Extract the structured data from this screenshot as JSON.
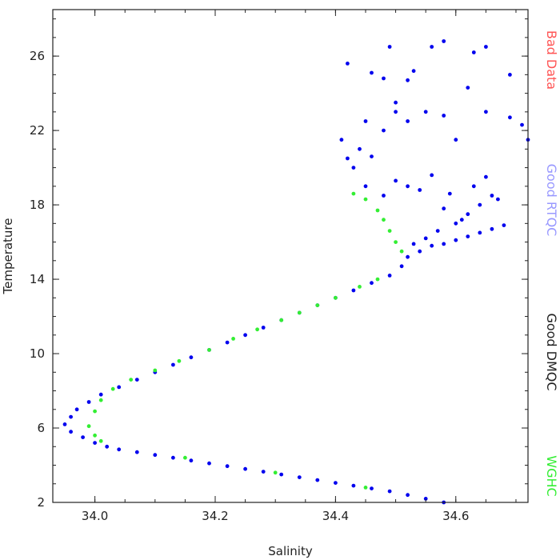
{
  "chart_data": {
    "type": "scatter",
    "title": "",
    "xlabel": "Salinity",
    "ylabel": "Temperature",
    "xlim": [
      33.93,
      34.72
    ],
    "ylim": [
      2,
      28.5
    ],
    "xticks": [
      34.0,
      34.2,
      34.4,
      34.6
    ],
    "xtick_labels": [
      "34.0",
      "34.2",
      "34.4",
      "34.6"
    ],
    "yticks": [
      2,
      6,
      10,
      14,
      18,
      22,
      26
    ],
    "ytick_labels": [
      "2",
      "6",
      "10",
      "14",
      "18",
      "22",
      "26"
    ],
    "grid": false,
    "legend_placement": "right",
    "legend": [
      {
        "label": "Bad Data",
        "color": "#ff5555"
      },
      {
        "label": "Good RTQC",
        "color": "#9999ff"
      },
      {
        "label": "Good DMQC",
        "color": "#222222"
      },
      {
        "label": "WGHC",
        "color": "#33ee33"
      }
    ],
    "series": [
      {
        "color": "#0000ee",
        "points": [
          [
            34.58,
            2.0
          ],
          [
            34.55,
            2.2
          ],
          [
            34.52,
            2.4
          ],
          [
            34.49,
            2.6
          ],
          [
            34.46,
            2.75
          ],
          [
            34.43,
            2.9
          ],
          [
            34.4,
            3.05
          ],
          [
            34.37,
            3.2
          ],
          [
            34.34,
            3.35
          ],
          [
            34.31,
            3.5
          ],
          [
            34.28,
            3.65
          ],
          [
            34.25,
            3.8
          ],
          [
            34.22,
            3.95
          ],
          [
            34.19,
            4.1
          ],
          [
            34.16,
            4.25
          ],
          [
            34.13,
            4.4
          ],
          [
            34.1,
            4.55
          ],
          [
            34.07,
            4.7
          ],
          [
            34.04,
            4.85
          ],
          [
            34.02,
            5.0
          ],
          [
            34.0,
            5.2
          ],
          [
            33.98,
            5.5
          ],
          [
            33.96,
            5.8
          ],
          [
            33.95,
            6.2
          ],
          [
            33.96,
            6.6
          ],
          [
            33.97,
            7.0
          ],
          [
            33.99,
            7.4
          ],
          [
            34.01,
            7.8
          ],
          [
            34.04,
            8.2
          ],
          [
            34.07,
            8.6
          ],
          [
            34.1,
            9.0
          ],
          [
            34.13,
            9.4
          ],
          [
            34.16,
            9.8
          ],
          [
            34.19,
            10.2
          ],
          [
            34.22,
            10.6
          ],
          [
            34.25,
            11.0
          ],
          [
            34.28,
            11.4
          ],
          [
            34.31,
            11.8
          ],
          [
            34.34,
            12.2
          ],
          [
            34.37,
            12.6
          ],
          [
            34.4,
            13.0
          ],
          [
            34.43,
            13.4
          ],
          [
            34.46,
            13.8
          ],
          [
            34.49,
            14.2
          ],
          [
            34.51,
            14.7
          ],
          [
            34.52,
            15.2
          ],
          [
            34.54,
            15.5
          ],
          [
            34.56,
            15.8
          ],
          [
            34.58,
            15.9
          ],
          [
            34.6,
            16.1
          ],
          [
            34.62,
            16.3
          ],
          [
            34.64,
            16.5
          ],
          [
            34.66,
            16.7
          ],
          [
            34.68,
            16.9
          ],
          [
            34.62,
            17.5
          ],
          [
            34.64,
            18.0
          ],
          [
            34.66,
            18.5
          ],
          [
            34.6,
            17.0
          ],
          [
            34.58,
            17.8
          ],
          [
            34.63,
            19.0
          ],
          [
            34.65,
            19.5
          ],
          [
            34.67,
            18.3
          ],
          [
            34.59,
            18.6
          ],
          [
            34.61,
            17.2
          ],
          [
            34.57,
            16.6
          ],
          [
            34.55,
            16.2
          ],
          [
            34.53,
            15.9
          ],
          [
            34.45,
            19.0
          ],
          [
            34.48,
            18.5
          ],
          [
            34.5,
            19.3
          ],
          [
            34.52,
            19.0
          ],
          [
            34.54,
            18.8
          ],
          [
            34.56,
            19.6
          ],
          [
            34.42,
            20.5
          ],
          [
            34.44,
            21.0
          ],
          [
            34.41,
            21.5
          ],
          [
            34.43,
            20.0
          ],
          [
            34.46,
            20.6
          ],
          [
            34.45,
            22.5
          ],
          [
            34.48,
            22.0
          ],
          [
            34.5,
            23.0
          ],
          [
            34.52,
            22.5
          ],
          [
            34.55,
            23.0
          ],
          [
            34.58,
            22.8
          ],
          [
            34.6,
            21.5
          ],
          [
            34.65,
            23.0
          ],
          [
            34.69,
            22.7
          ],
          [
            34.71,
            22.3
          ],
          [
            34.72,
            21.5
          ],
          [
            34.48,
            24.8
          ],
          [
            34.52,
            24.7
          ],
          [
            34.53,
            25.2
          ],
          [
            34.5,
            23.5
          ],
          [
            34.62,
            24.3
          ],
          [
            34.42,
            25.6
          ],
          [
            34.46,
            25.1
          ],
          [
            34.49,
            26.5
          ],
          [
            34.56,
            26.5
          ],
          [
            34.58,
            26.8
          ],
          [
            34.63,
            26.2
          ],
          [
            34.65,
            26.5
          ],
          [
            34.69,
            25.0
          ]
        ]
      },
      {
        "color": "#33ee33",
        "points": [
          [
            34.43,
            18.6
          ],
          [
            34.45,
            18.3
          ],
          [
            34.47,
            17.7
          ],
          [
            34.48,
            17.2
          ],
          [
            34.49,
            16.6
          ],
          [
            34.5,
            16.0
          ],
          [
            34.51,
            15.5
          ],
          [
            34.47,
            14.0
          ],
          [
            34.44,
            13.6
          ],
          [
            34.4,
            13.0
          ],
          [
            34.37,
            12.6
          ],
          [
            34.34,
            12.2
          ],
          [
            34.31,
            11.8
          ],
          [
            34.27,
            11.3
          ],
          [
            34.23,
            10.8
          ],
          [
            34.19,
            10.2
          ],
          [
            34.14,
            9.6
          ],
          [
            34.1,
            9.1
          ],
          [
            34.06,
            8.6
          ],
          [
            34.03,
            8.1
          ],
          [
            34.01,
            7.5
          ],
          [
            34.0,
            6.9
          ],
          [
            33.99,
            6.1
          ],
          [
            34.0,
            5.6
          ],
          [
            34.01,
            5.3
          ],
          [
            34.15,
            4.4
          ],
          [
            34.3,
            3.6
          ],
          [
            34.45,
            2.8
          ]
        ]
      }
    ]
  }
}
